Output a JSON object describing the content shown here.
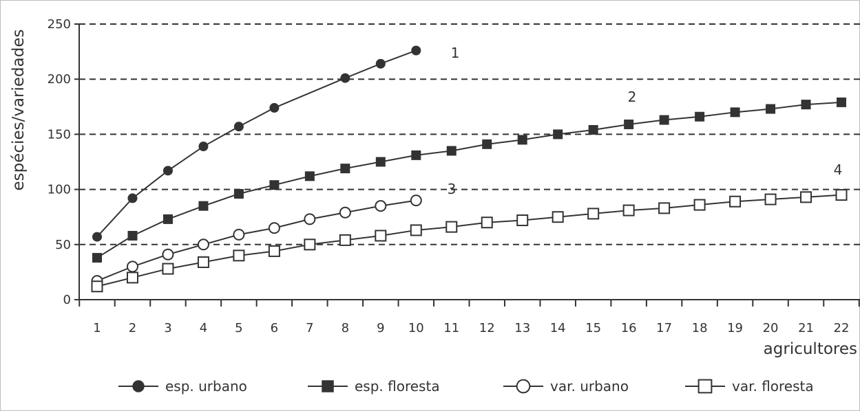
{
  "chart_data": {
    "type": "line",
    "ylabel": "espécies/variedades",
    "xlabel": "agricultores",
    "ylim": [
      0,
      250
    ],
    "xlim": [
      1,
      22
    ],
    "grid": "dashed-horizontal",
    "legend_position": "bottom",
    "x_ticks": [
      "1",
      "2",
      "3",
      "4",
      "5",
      "6",
      "7",
      "8",
      "9",
      "10",
      "11",
      "12",
      "13",
      "14",
      "15",
      "16",
      "17",
      "18",
      "19",
      "20",
      "21",
      "22"
    ],
    "y_ticks": [
      "0",
      "50",
      "100",
      "150",
      "200",
      "250"
    ],
    "y_tick_values": [
      0,
      50,
      100,
      150,
      200,
      250
    ],
    "series": [
      {
        "name": "esp. urbano",
        "marker": "filled-circle",
        "curve_label": "1",
        "x": [
          1,
          2,
          3,
          4,
          5,
          6,
          8,
          9,
          10
        ],
        "y": [
          57,
          92,
          117,
          139,
          157,
          174,
          201,
          214,
          226
        ]
      },
      {
        "name": "esp. floresta",
        "marker": "filled-square",
        "curve_label": "2",
        "x": [
          1,
          2,
          3,
          4,
          5,
          6,
          7,
          8,
          9,
          10,
          11,
          12,
          13,
          14,
          15,
          16,
          17,
          18,
          19,
          20,
          21,
          22
        ],
        "y": [
          38,
          58,
          73,
          85,
          96,
          104,
          112,
          119,
          125,
          131,
          135,
          141,
          145,
          150,
          154,
          159,
          163,
          166,
          170,
          173,
          177,
          179
        ]
      },
      {
        "name": "var. urbano",
        "marker": "open-circle",
        "curve_label": "3",
        "x": [
          1,
          2,
          3,
          4,
          5,
          6,
          7,
          8,
          9,
          10
        ],
        "y": [
          17,
          30,
          41,
          50,
          59,
          65,
          73,
          79,
          85,
          90
        ]
      },
      {
        "name": "var. floresta",
        "marker": "open-square",
        "curve_label": "4",
        "x": [
          1,
          2,
          3,
          4,
          5,
          6,
          7,
          8,
          9,
          10,
          11,
          12,
          13,
          14,
          15,
          16,
          17,
          18,
          19,
          20,
          21,
          22
        ],
        "y": [
          12,
          20,
          28,
          34,
          40,
          44,
          50,
          54,
          58,
          63,
          66,
          70,
          72,
          75,
          78,
          81,
          83,
          86,
          89,
          91,
          93,
          95
        ]
      }
    ]
  }
}
